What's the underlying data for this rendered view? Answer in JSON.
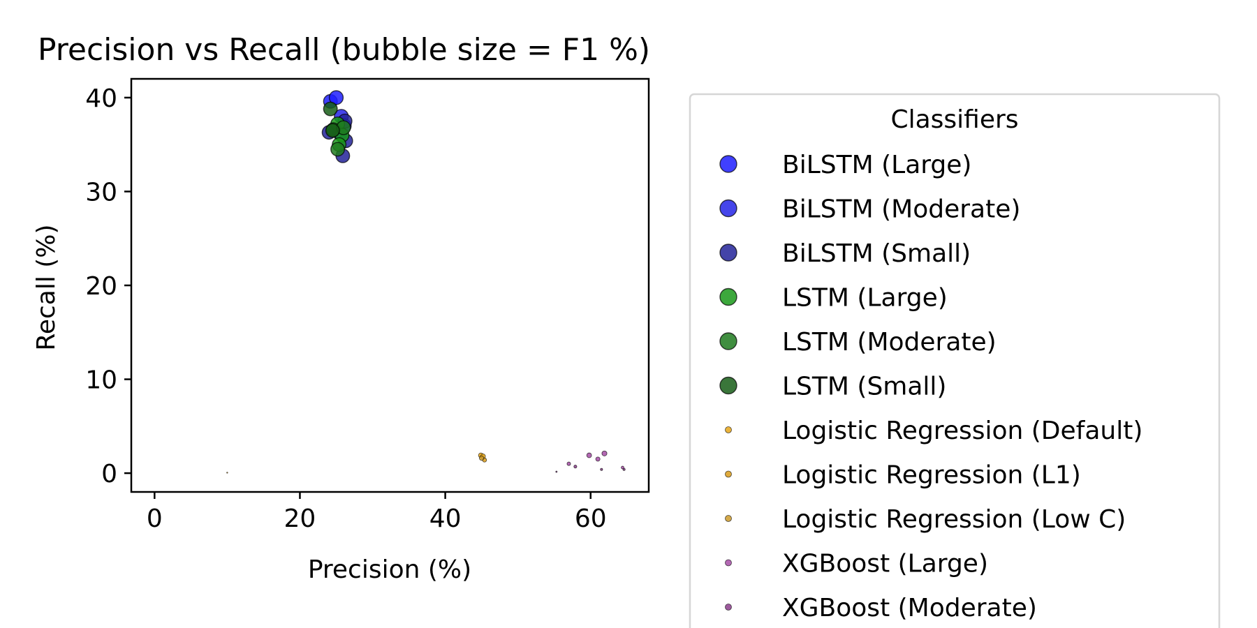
{
  "chart_data": {
    "type": "scatter",
    "title": "Precision vs Recall (bubble size = F1 %)",
    "xlabel": "Precision (%)",
    "ylabel": "Recall (%)",
    "xlim": [
      -3.2,
      68
    ],
    "ylim": [
      -2,
      42
    ],
    "xticks": [
      0,
      20,
      40,
      60
    ],
    "yticks": [
      0,
      10,
      20,
      30,
      40
    ],
    "grid": false,
    "legend_title": "Classifiers",
    "legend_position": "right",
    "series": [
      {
        "name": "BiLSTM (Large)",
        "color": "#1f1fff",
        "points": [
          [
            24.2,
            39.6,
            29.5
          ],
          [
            25.0,
            40.0,
            30.2
          ]
        ]
      },
      {
        "name": "BiLSTM (Moderate)",
        "color": "#2424e6",
        "points": [
          [
            25.7,
            38.0,
            30.5
          ],
          [
            26.1,
            37.0,
            30.3
          ],
          [
            25.5,
            36.2,
            29.8
          ]
        ]
      },
      {
        "name": "BiLSTM (Small)",
        "color": "#232399",
        "points": [
          [
            24.0,
            36.3,
            28.9
          ],
          [
            26.2,
            37.5,
            30.6
          ],
          [
            26.3,
            35.4,
            30.2
          ],
          [
            25.9,
            33.8,
            29.3
          ]
        ]
      },
      {
        "name": "LSTM (Large)",
        "color": "#1a991a",
        "points": [
          [
            25.2,
            37.2,
            30.0
          ],
          [
            25.8,
            36.0,
            29.9
          ],
          [
            25.4,
            35.0,
            29.5
          ]
        ]
      },
      {
        "name": "LSTM (Moderate)",
        "color": "#1f7a1f",
        "points": [
          [
            24.6,
            36.6,
            29.3
          ],
          [
            26.0,
            36.8,
            30.4
          ],
          [
            25.2,
            34.5,
            29.2
          ]
        ]
      },
      {
        "name": "LSTM (Small)",
        "color": "#175e17",
        "points": [
          [
            24.2,
            38.8,
            29.4
          ],
          [
            24.5,
            36.5,
            29.1
          ]
        ]
      },
      {
        "name": "Logistic Regression (Default)",
        "color": "#e6a619",
        "points": [
          [
            44.9,
            1.9,
            3.6
          ],
          [
            45.2,
            1.8,
            3.5
          ]
        ]
      },
      {
        "name": "Logistic Regression (L1)",
        "color": "#d99b1a",
        "points": [
          [
            45.4,
            1.4,
            2.7
          ],
          [
            10.0,
            0.05,
            0.1
          ]
        ]
      },
      {
        "name": "Logistic Regression (Low C)",
        "color": "#cc9a2a",
        "points": [
          [
            45.0,
            1.6,
            3.1
          ]
        ]
      },
      {
        "name": "XGBoost (Large)",
        "color": "#a64da6",
        "points": [
          [
            59.8,
            1.9,
            3.7
          ],
          [
            61.9,
            2.1,
            4.0
          ],
          [
            61.0,
            1.5,
            2.9
          ],
          [
            57.0,
            1.0,
            2.0
          ],
          [
            64.4,
            0.6,
            1.2
          ]
        ]
      },
      {
        "name": "XGBoost (Moderate)",
        "color": "#8c3d8c",
        "points": [
          [
            57.9,
            0.7,
            1.4
          ],
          [
            55.3,
            0.15,
            0.3
          ],
          [
            61.5,
            0.4,
            0.8
          ],
          [
            64.6,
            0.4,
            0.8
          ]
        ]
      }
    ]
  }
}
